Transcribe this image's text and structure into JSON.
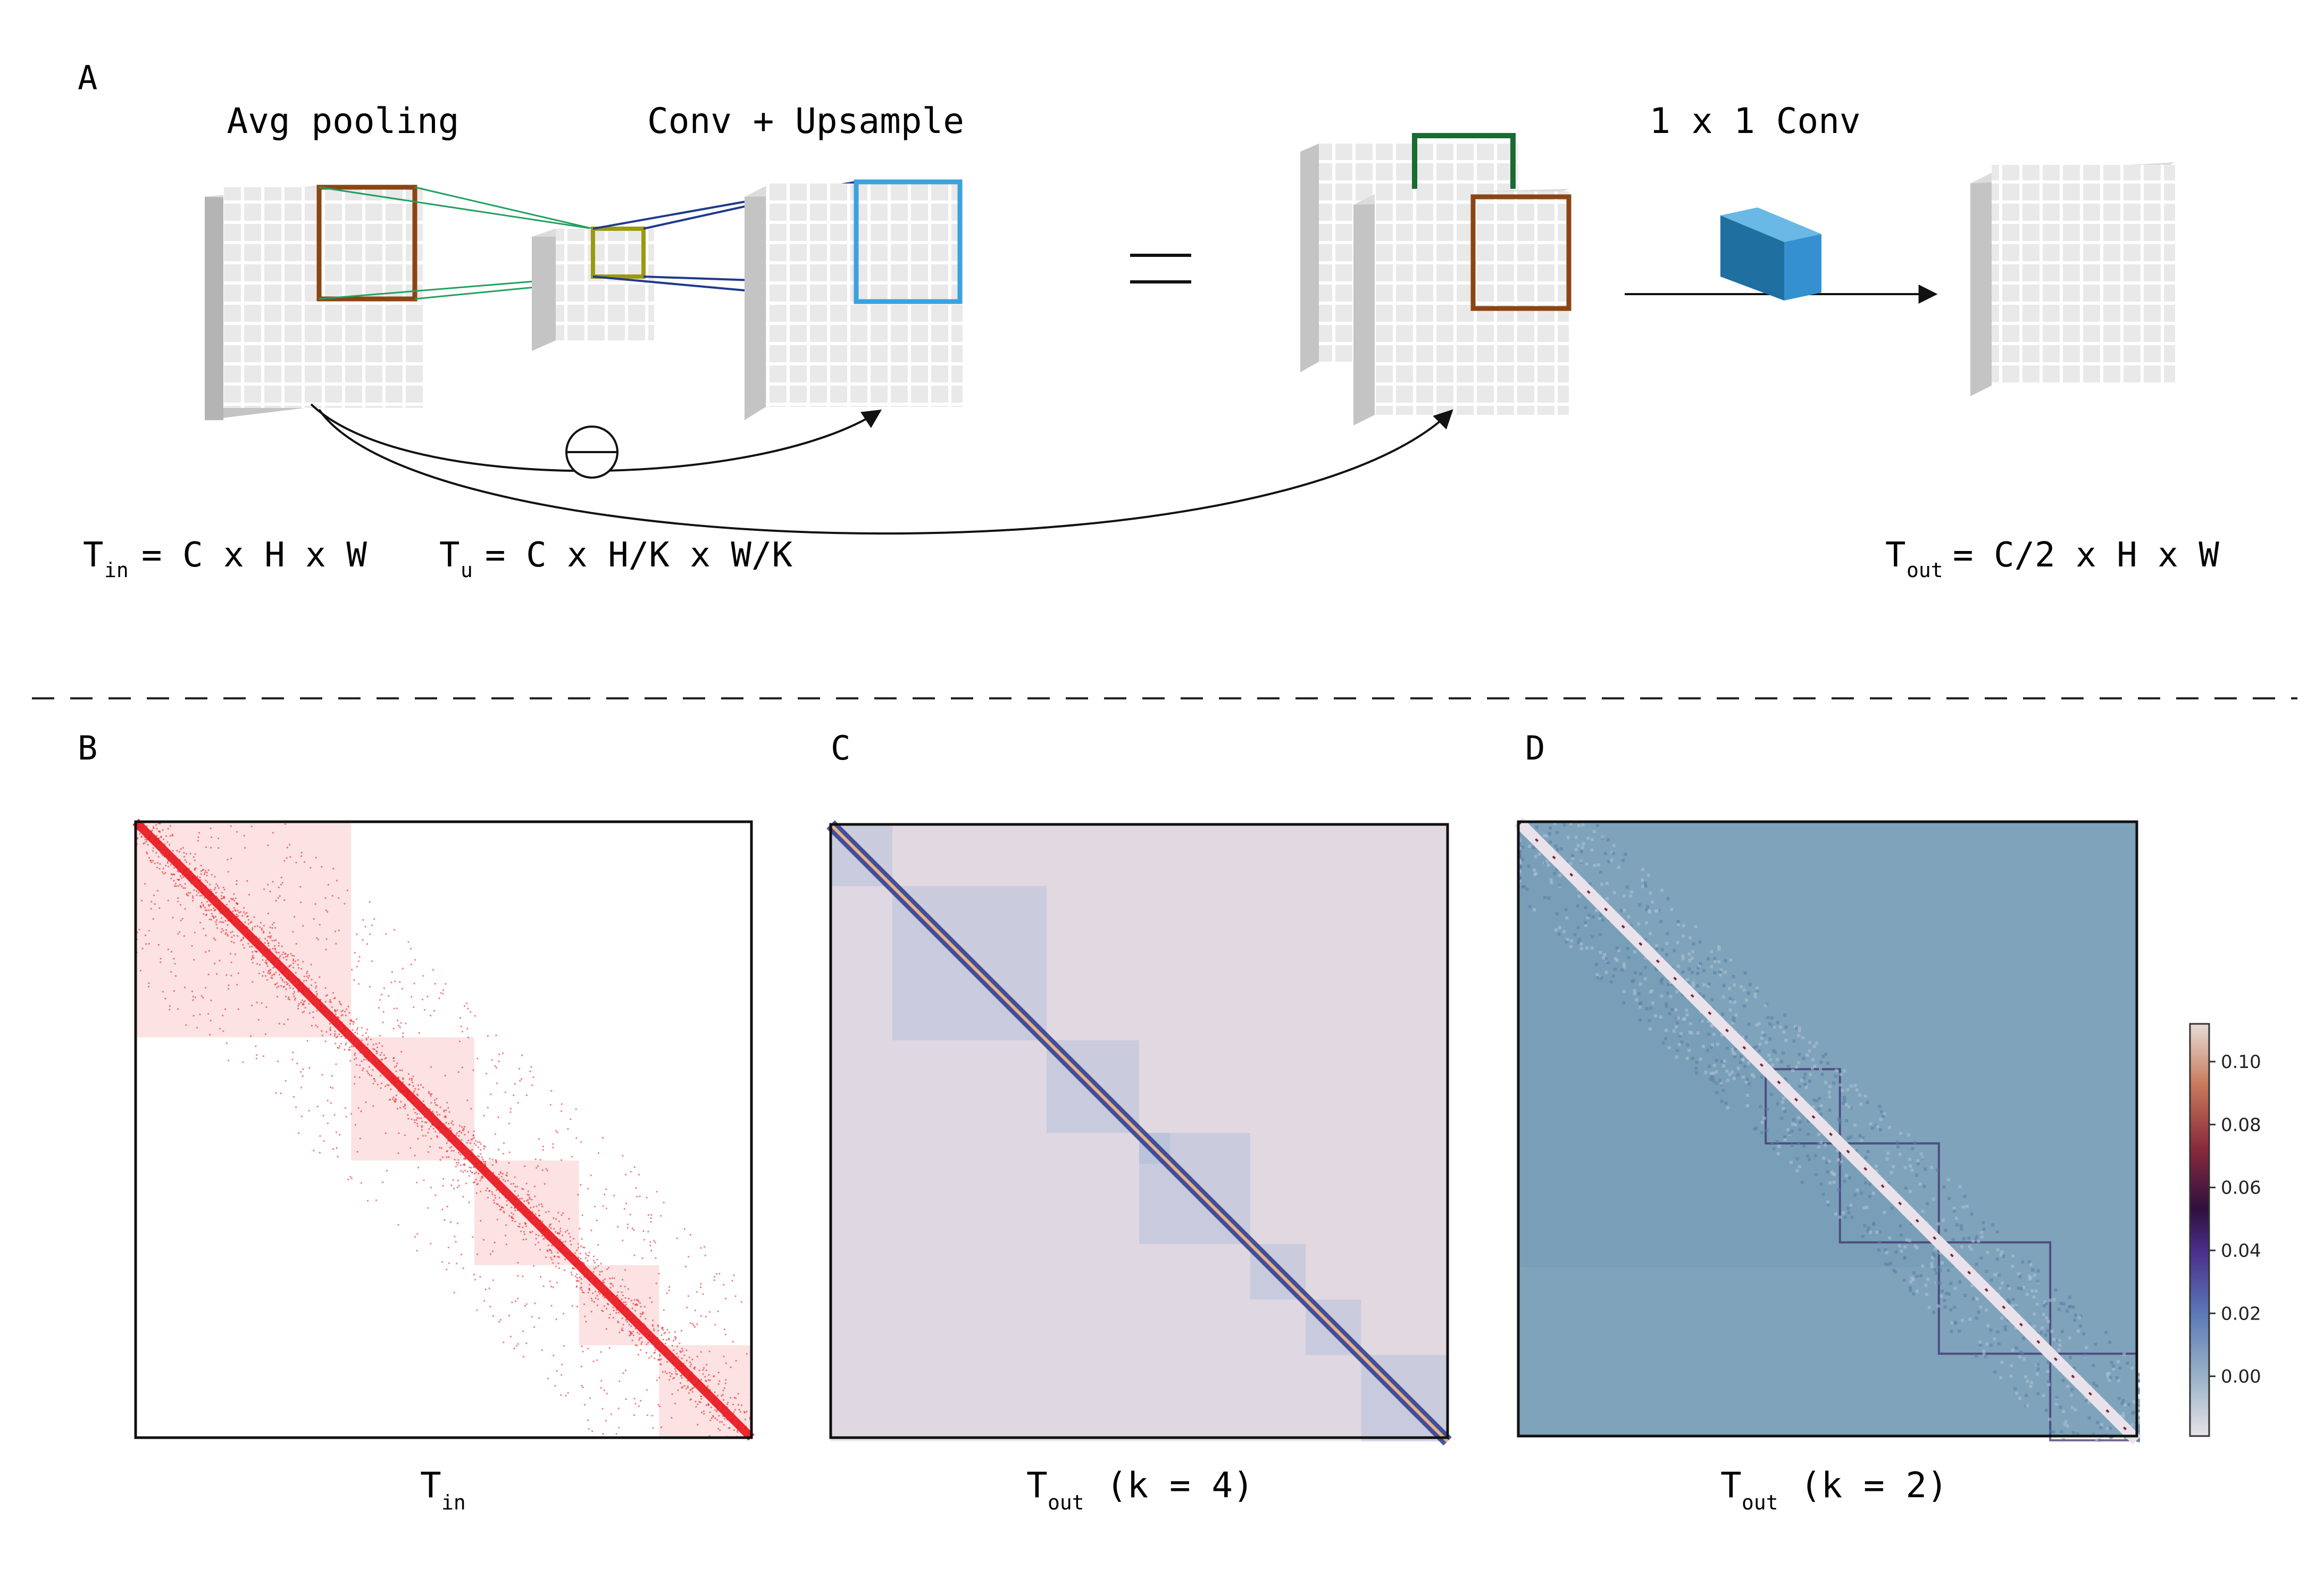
{
  "panel_labels": {
    "a": "A",
    "b": "B",
    "c": "C",
    "d": "D"
  },
  "panel_a": {
    "title_avg_pooling": "Avg pooling",
    "title_conv_upsample": "Conv + Upsample",
    "title_1x1_conv": "1 x 1 Conv",
    "equals_symbol": "=",
    "minus_symbol": "⊖",
    "formula_in": {
      "base": "T",
      "sub": "in",
      "rest": "= C x H x W"
    },
    "formula_u": {
      "base": "T",
      "sub": "u",
      "rest": "= C x H/K x W/K"
    },
    "formula_out": {
      "base": "T",
      "sub": "out",
      "rest": "= C/2 x H x W"
    },
    "colors": {
      "brown_box": "#8B4513",
      "green_box": "#1a6b30",
      "olive_box": "#9a9a10",
      "light_blue_box": "#3ba2dc",
      "dark_blue_line": "#1f3a8c",
      "green_line": "#20a060",
      "cube": "#2f8ac6"
    }
  },
  "panel_b": {
    "caption": {
      "base": "T",
      "sub": "in",
      "rest": ""
    },
    "color": "#e8141c"
  },
  "panel_c": {
    "caption": {
      "base": "T",
      "sub": "out",
      "rest": " (k = 4)"
    },
    "background": "#e2d8e0",
    "band_color": "#2a3a8c"
  },
  "panel_d": {
    "caption": {
      "base": "T",
      "sub": "out",
      "rest": " (k = 2)"
    },
    "background": "#7ea3bb"
  },
  "colorbar": {
    "ticks": [
      "0.10",
      "0.08",
      "0.06",
      "0.04",
      "0.02",
      "0.00"
    ],
    "tick_values": [
      0.1,
      0.08,
      0.06,
      0.04,
      0.02,
      0.0
    ],
    "range": [
      -0.019,
      0.112
    ],
    "colormap": "twilight-like"
  }
}
